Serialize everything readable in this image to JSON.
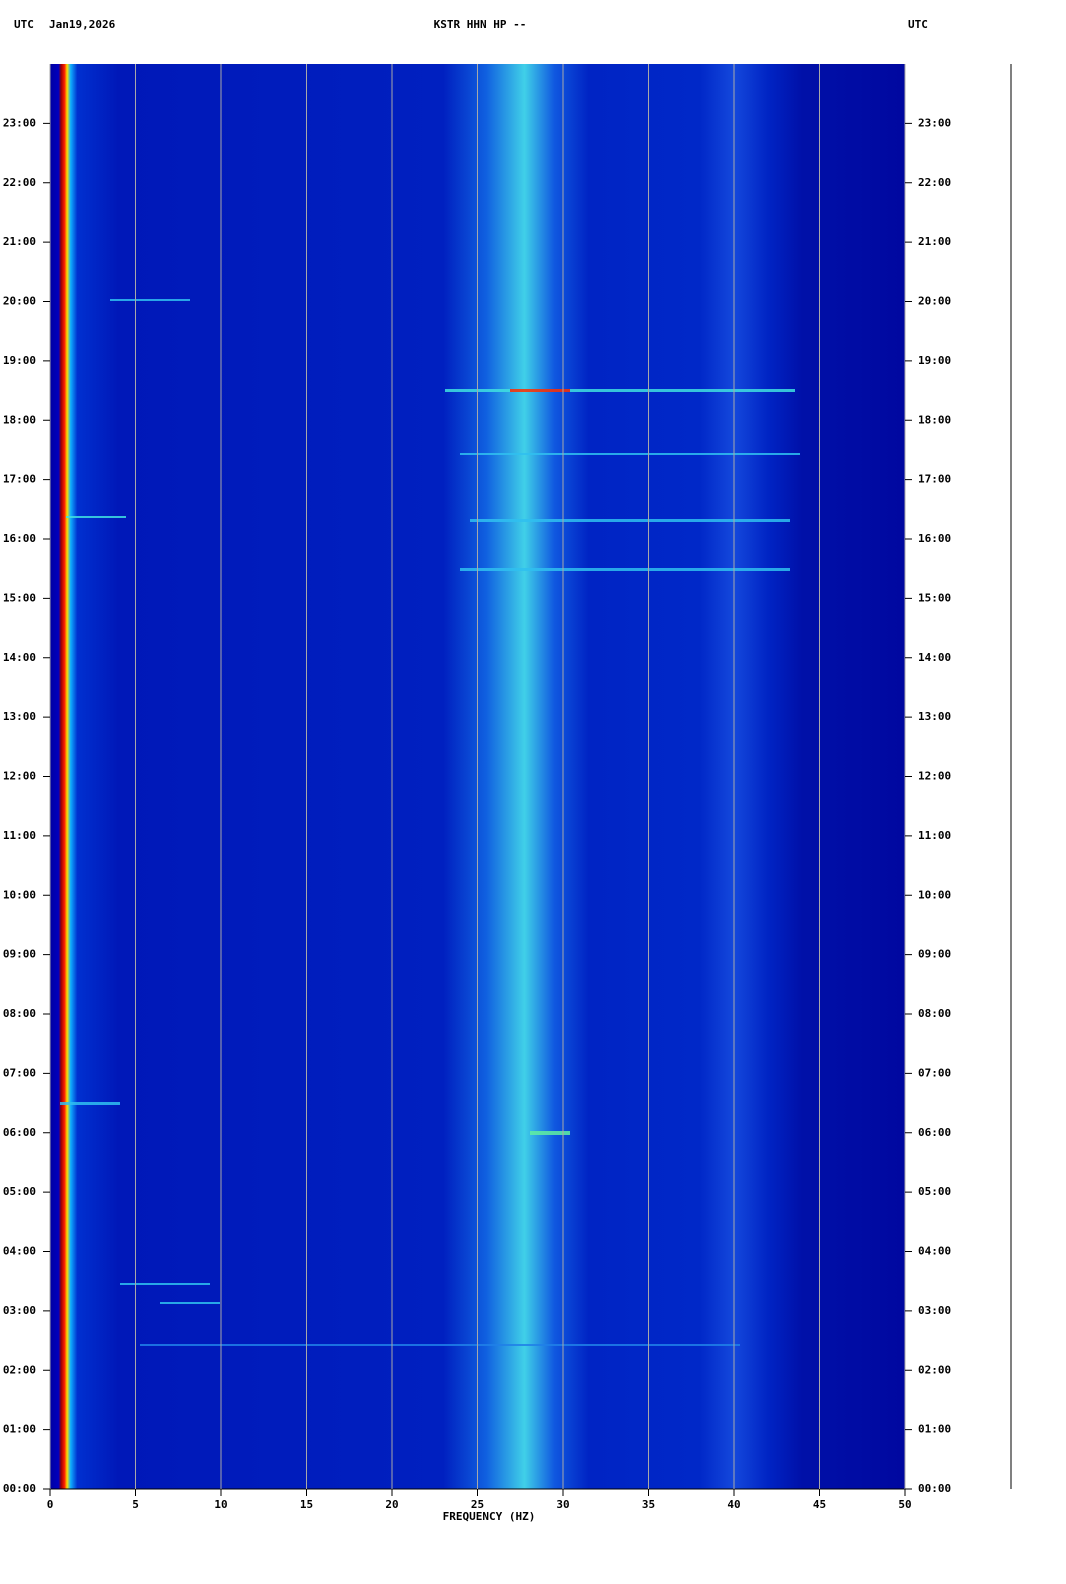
{
  "chart_data": {
    "type": "spectrogram",
    "left_timezone": "UTC",
    "date": "Jan19,2026",
    "title": "KSTR HHN HP --",
    "right_timezone": "UTC",
    "xlabel": "FREQUENCY (HZ)",
    "xlim": [
      0,
      50
    ],
    "xticks": [
      0,
      5,
      10,
      15,
      20,
      25,
      30,
      35,
      40,
      45,
      50
    ],
    "ylim": [
      0,
      24
    ],
    "yticks": [
      {
        "value": 0,
        "label": "00:00"
      },
      {
        "value": 1,
        "label": "01:00"
      },
      {
        "value": 2,
        "label": "02:00"
      },
      {
        "value": 3,
        "label": "03:00"
      },
      {
        "value": 4,
        "label": "04:00"
      },
      {
        "value": 5,
        "label": "05:00"
      },
      {
        "value": 6,
        "label": "06:00"
      },
      {
        "value": 7,
        "label": "07:00"
      },
      {
        "value": 8,
        "label": "08:00"
      },
      {
        "value": 9,
        "label": "09:00"
      },
      {
        "value": 10,
        "label": "10:00"
      },
      {
        "value": 11,
        "label": "11:00"
      },
      {
        "value": 12,
        "label": "12:00"
      },
      {
        "value": 13,
        "label": "13:00"
      },
      {
        "value": 14,
        "label": "14:00"
      },
      {
        "value": 15,
        "label": "15:00"
      },
      {
        "value": 16,
        "label": "16:00"
      },
      {
        "value": 17,
        "label": "17:00"
      },
      {
        "value": 18,
        "label": "18:00"
      },
      {
        "value": 19,
        "label": "19:00"
      },
      {
        "value": 20,
        "label": "20:00"
      },
      {
        "value": 21,
        "label": "21:00"
      },
      {
        "value": 22,
        "label": "22:00"
      },
      {
        "value": 23,
        "label": "23:00"
      }
    ],
    "grid": true
  }
}
